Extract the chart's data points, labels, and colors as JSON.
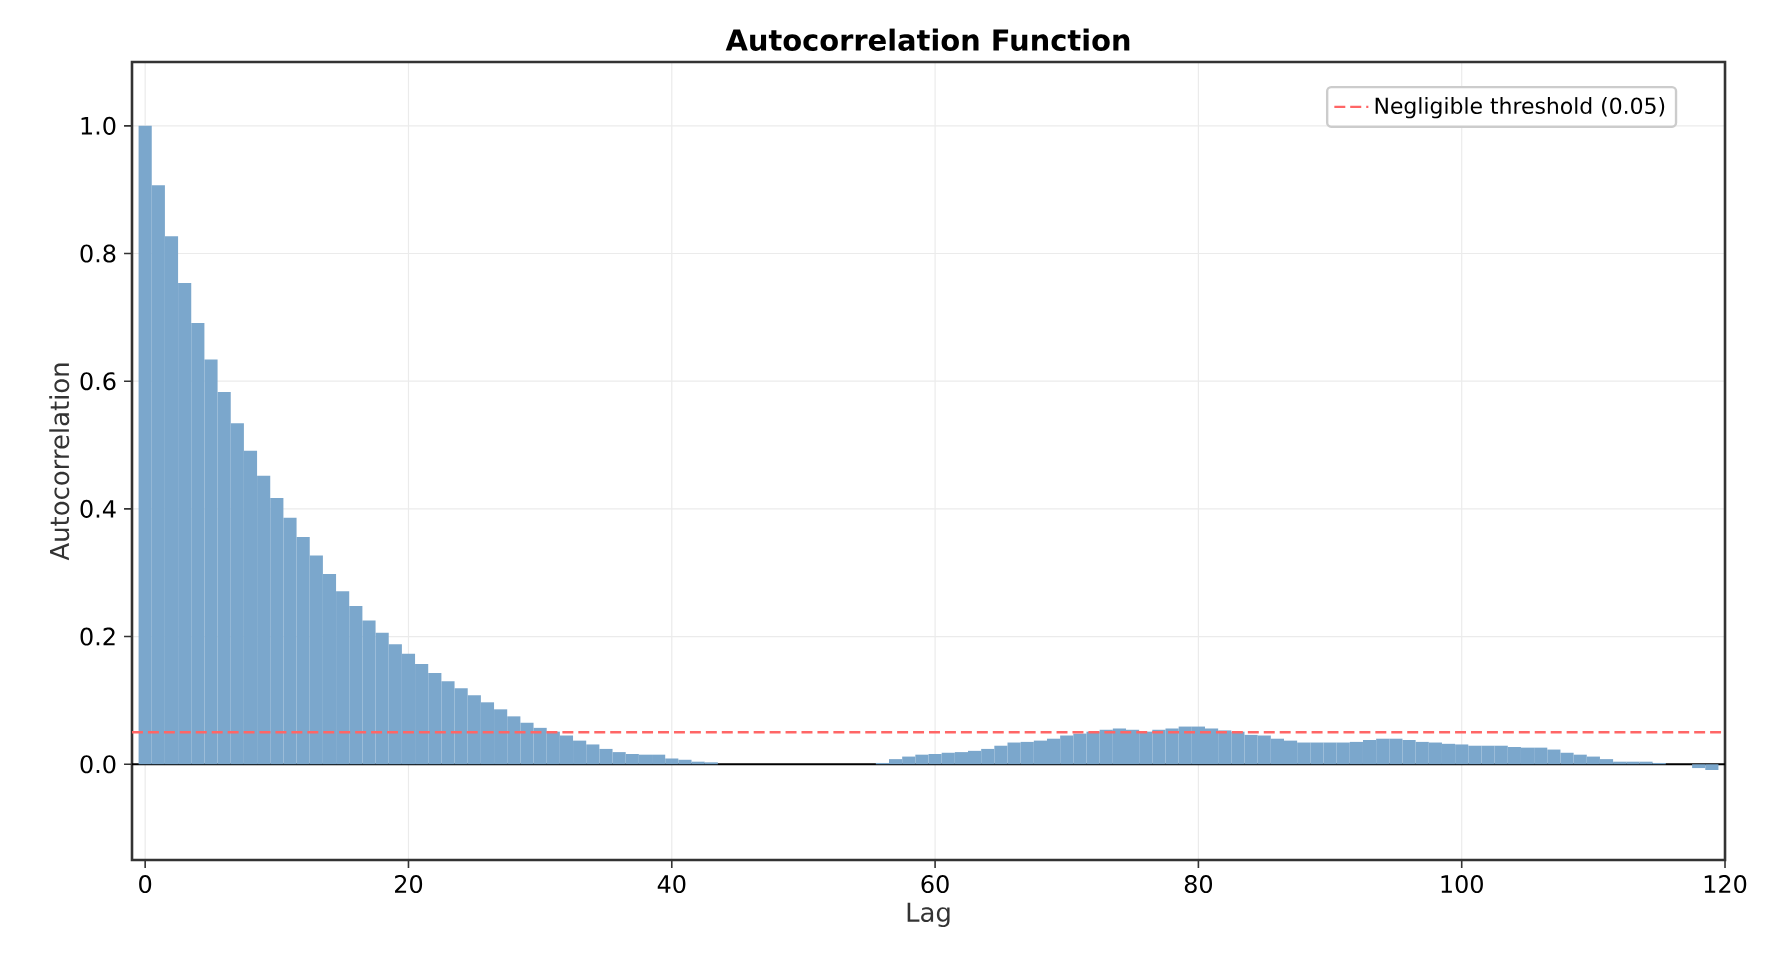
{
  "chart_data": {
    "type": "bar",
    "title": "Autocorrelation Function",
    "xlabel": "Lag",
    "ylabel": "Autocorrelation",
    "x": [
      0,
      1,
      2,
      3,
      4,
      5,
      6,
      7,
      8,
      9,
      10,
      11,
      12,
      13,
      14,
      15,
      16,
      17,
      18,
      19,
      20,
      21,
      22,
      23,
      24,
      25,
      26,
      27,
      28,
      29,
      30,
      31,
      32,
      33,
      34,
      35,
      36,
      37,
      38,
      39,
      40,
      41,
      42,
      43,
      44,
      45,
      46,
      47,
      48,
      49,
      50,
      51,
      52,
      53,
      54,
      55,
      56,
      57,
      58,
      59,
      60,
      61,
      62,
      63,
      64,
      65,
      66,
      67,
      68,
      69,
      70,
      71,
      72,
      73,
      74,
      75,
      76,
      77,
      78,
      79,
      80,
      81,
      82,
      83,
      84,
      85,
      86,
      87,
      88,
      89,
      90,
      91,
      92,
      93,
      94,
      95,
      96,
      97,
      98,
      99,
      100,
      101,
      102,
      103,
      104,
      105,
      106,
      107,
      108,
      109,
      110,
      111,
      112,
      113,
      114,
      115,
      116,
      117,
      118,
      119
    ],
    "values": [
      1.0,
      0.907,
      0.827,
      0.754,
      0.691,
      0.634,
      0.583,
      0.534,
      0.491,
      0.452,
      0.417,
      0.386,
      0.356,
      0.327,
      0.298,
      0.271,
      0.248,
      0.225,
      0.206,
      0.188,
      0.173,
      0.157,
      0.143,
      0.13,
      0.119,
      0.108,
      0.097,
      0.086,
      0.075,
      0.065,
      0.057,
      0.051,
      0.045,
      0.037,
      0.031,
      0.024,
      0.019,
      0.016,
      0.015,
      0.015,
      0.009,
      0.007,
      0.004,
      0.003,
      0,
      0,
      0,
      0,
      0,
      0,
      0,
      0,
      0,
      0,
      0,
      0,
      0.002,
      0.008,
      0.012,
      0.015,
      0.016,
      0.018,
      0.019,
      0.021,
      0.024,
      0.029,
      0.034,
      0.035,
      0.037,
      0.04,
      0.045,
      0.048,
      0.051,
      0.054,
      0.056,
      0.054,
      0.051,
      0.054,
      0.056,
      0.059,
      0.059,
      0.056,
      0.053,
      0.051,
      0.046,
      0.045,
      0.04,
      0.037,
      0.034,
      0.034,
      0.034,
      0.034,
      0.035,
      0.038,
      0.04,
      0.04,
      0.038,
      0.035,
      0.034,
      0.032,
      0.031,
      0.029,
      0.029,
      0.029,
      0.027,
      0.026,
      0.026,
      0.023,
      0.018,
      0.015,
      0.012,
      0.008,
      0.004,
      0.004,
      0.004,
      0.002,
      0,
      0,
      -0.006,
      -0.009
    ],
    "color": "#7ba7cc",
    "xlim": [
      -1,
      120
    ],
    "ylim": [
      -0.15,
      1.1
    ],
    "xticks": [
      0,
      20,
      40,
      60,
      80,
      100,
      120
    ],
    "yticks": [
      {
        "value": 0,
        "label": "0.0"
      },
      {
        "value": 0.2,
        "label": "0.2"
      },
      {
        "value": 0.4,
        "label": "0.4"
      },
      {
        "value": 0.6,
        "label": "0.6"
      },
      {
        "value": 0.8,
        "label": "0.8"
      },
      {
        "value": 1.0,
        "label": "1.0"
      }
    ],
    "ref_lines": [
      {
        "axis": "y",
        "value": 0,
        "color": "#000000",
        "line_style": "solid"
      },
      {
        "axis": "y",
        "value": 0.05,
        "label": "Negligible threshold (0.05)",
        "color": "#ff6666",
        "line_style": "dashed"
      }
    ],
    "grid": true,
    "legend": "top right"
  }
}
